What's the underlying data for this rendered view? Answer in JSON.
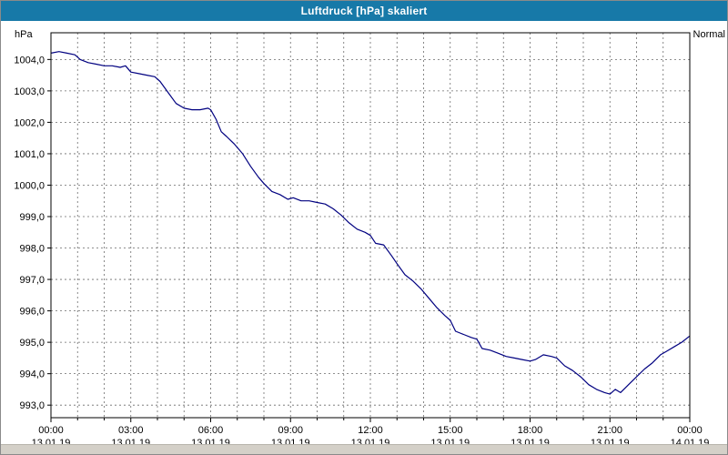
{
  "titlebar": {
    "title": "Luftdruck [hPa] skaliert"
  },
  "axis_unit_label": "hPa",
  "legend_label": "Normal",
  "colors": {
    "titlebar_bg": "#1779a8",
    "titlebar_text": "#ffffff",
    "plot_bg": "#ffffff",
    "plot_border": "#000000",
    "grid": "#6b6b6b",
    "tick": "#000000",
    "label_text": "#000000",
    "line": "#000080",
    "footer_bg": "#d4d0c8"
  },
  "chart_data": {
    "type": "line",
    "title": "Luftdruck [hPa] skaliert",
    "ylabel": "hPa",
    "xlabel": "",
    "legend": [
      "Normal"
    ],
    "legend_position": "top-right",
    "grid": "dashed hourly vertical lines, dashed 1-hPa horizontal lines",
    "xlim_hours": [
      0,
      24
    ],
    "ylim": [
      992.6,
      1004.85
    ],
    "y_ticks": [
      {
        "value": 1004,
        "label": "1004,0"
      },
      {
        "value": 1003,
        "label": "1003,0"
      },
      {
        "value": 1002,
        "label": "1002,0"
      },
      {
        "value": 1001,
        "label": "1001,0"
      },
      {
        "value": 1000,
        "label": "1000,0"
      },
      {
        "value": 999,
        "label": "999,0"
      },
      {
        "value": 998,
        "label": "998,0"
      },
      {
        "value": 997,
        "label": "997,0"
      },
      {
        "value": 996,
        "label": "996,0"
      },
      {
        "value": 995,
        "label": "995,0"
      },
      {
        "value": 994,
        "label": "994,0"
      },
      {
        "value": 993,
        "label": "993,0"
      }
    ],
    "x_ticks": [
      {
        "hour": 0,
        "time": "00:00",
        "date": "13.01.19"
      },
      {
        "hour": 3,
        "time": "03:00",
        "date": "13.01.19"
      },
      {
        "hour": 6,
        "time": "06:00",
        "date": "13.01.19"
      },
      {
        "hour": 9,
        "time": "09:00",
        "date": "13.01.19"
      },
      {
        "hour": 12,
        "time": "12:00",
        "date": "13.01.19"
      },
      {
        "hour": 15,
        "time": "15:00",
        "date": "13.01.19"
      },
      {
        "hour": 18,
        "time": "18:00",
        "date": "13.01.19"
      },
      {
        "hour": 21,
        "time": "21:00",
        "date": "13.01.19"
      },
      {
        "hour": 24,
        "time": "00:00",
        "date": "14.01.19"
      }
    ],
    "series": [
      {
        "name": "Normal",
        "color": "#000080",
        "points": [
          [
            0,
            1004.2
          ],
          [
            0.3,
            1004.25
          ],
          [
            0.6,
            1004.2
          ],
          [
            0.9,
            1004.15
          ],
          [
            1.1,
            1004.0
          ],
          [
            1.4,
            1003.9
          ],
          [
            1.7,
            1003.85
          ],
          [
            2.0,
            1003.8
          ],
          [
            2.3,
            1003.8
          ],
          [
            2.6,
            1003.75
          ],
          [
            2.8,
            1003.8
          ],
          [
            3.0,
            1003.6
          ],
          [
            3.3,
            1003.55
          ],
          [
            3.6,
            1003.5
          ],
          [
            3.9,
            1003.45
          ],
          [
            4.1,
            1003.3
          ],
          [
            4.4,
            1002.95
          ],
          [
            4.7,
            1002.6
          ],
          [
            5.0,
            1002.45
          ],
          [
            5.3,
            1002.4
          ],
          [
            5.6,
            1002.4
          ],
          [
            5.9,
            1002.45
          ],
          [
            6.0,
            1002.4
          ],
          [
            6.2,
            1002.1
          ],
          [
            6.4,
            1001.7
          ],
          [
            6.6,
            1001.55
          ],
          [
            6.9,
            1001.3
          ],
          [
            7.2,
            1001.0
          ],
          [
            7.5,
            1000.6
          ],
          [
            7.8,
            1000.25
          ],
          [
            8.0,
            1000.05
          ],
          [
            8.3,
            999.8
          ],
          [
            8.6,
            999.7
          ],
          [
            8.9,
            999.55
          ],
          [
            9.1,
            999.6
          ],
          [
            9.4,
            999.5
          ],
          [
            9.7,
            999.5
          ],
          [
            10.0,
            999.45
          ],
          [
            10.3,
            999.4
          ],
          [
            10.6,
            999.25
          ],
          [
            10.9,
            999.05
          ],
          [
            11.2,
            998.8
          ],
          [
            11.5,
            998.6
          ],
          [
            11.8,
            998.5
          ],
          [
            12.0,
            998.4
          ],
          [
            12.2,
            998.15
          ],
          [
            12.5,
            998.1
          ],
          [
            12.8,
            997.75
          ],
          [
            13.0,
            997.5
          ],
          [
            13.3,
            997.15
          ],
          [
            13.6,
            996.95
          ],
          [
            13.9,
            996.7
          ],
          [
            14.2,
            996.4
          ],
          [
            14.5,
            996.1
          ],
          [
            14.8,
            995.85
          ],
          [
            15.0,
            995.7
          ],
          [
            15.2,
            995.35
          ],
          [
            15.5,
            995.25
          ],
          [
            15.8,
            995.15
          ],
          [
            16.0,
            995.1
          ],
          [
            16.2,
            994.8
          ],
          [
            16.5,
            994.75
          ],
          [
            16.8,
            994.65
          ],
          [
            17.1,
            994.55
          ],
          [
            17.4,
            994.5
          ],
          [
            17.7,
            994.45
          ],
          [
            18.0,
            994.4
          ],
          [
            18.2,
            994.45
          ],
          [
            18.5,
            994.6
          ],
          [
            18.8,
            994.55
          ],
          [
            19.0,
            994.5
          ],
          [
            19.3,
            994.25
          ],
          [
            19.6,
            994.1
          ],
          [
            19.9,
            993.9
          ],
          [
            20.2,
            993.65
          ],
          [
            20.5,
            993.5
          ],
          [
            20.8,
            993.4
          ],
          [
            21.0,
            993.35
          ],
          [
            21.2,
            993.5
          ],
          [
            21.4,
            993.4
          ],
          [
            21.7,
            993.65
          ],
          [
            22.0,
            993.9
          ],
          [
            22.3,
            994.15
          ],
          [
            22.6,
            994.35
          ],
          [
            22.9,
            994.6
          ],
          [
            23.1,
            994.7
          ],
          [
            23.4,
            994.85
          ],
          [
            23.7,
            995.0
          ],
          [
            24.0,
            995.2
          ]
        ]
      }
    ]
  }
}
